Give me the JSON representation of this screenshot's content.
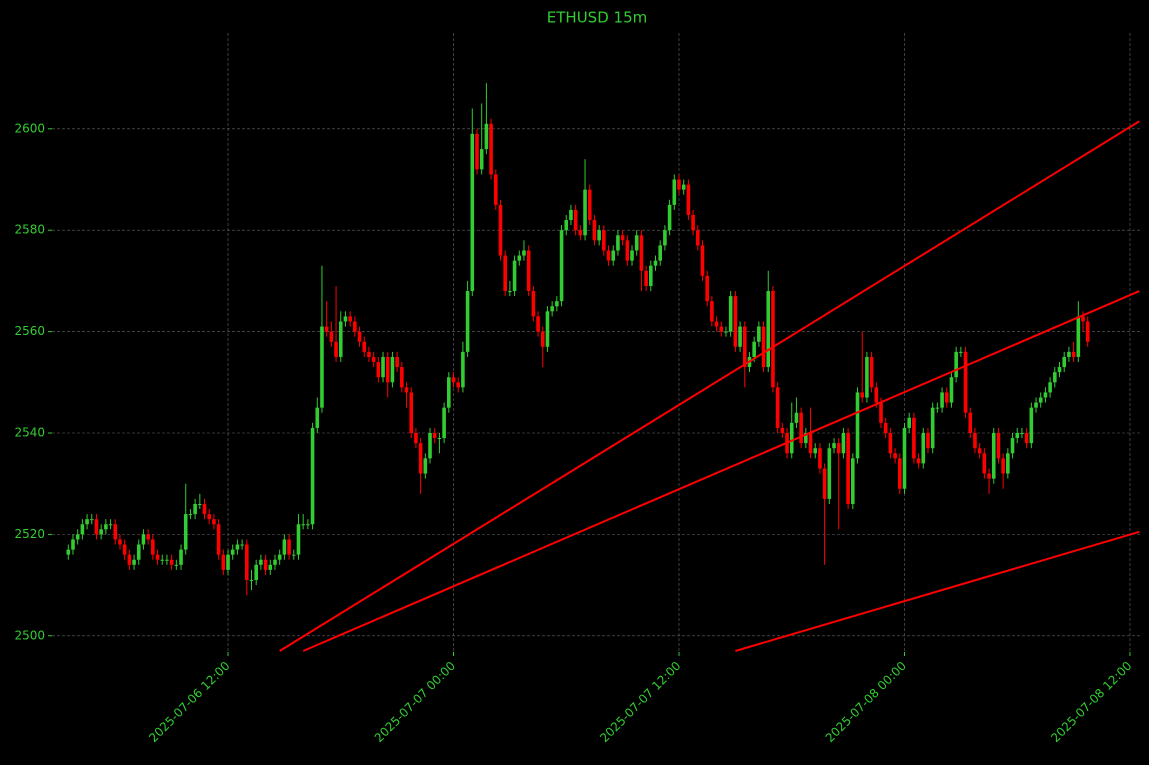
{
  "chart_data": {
    "type": "candlestick",
    "title": "ETHUSD 15m",
    "up_color": "#32cd32",
    "down_color": "#ff0000",
    "text_color": "#32cd32",
    "grid": true,
    "ylim": [
      2496.8,
      2618.9
    ],
    "yticks": [
      2500,
      2520,
      2540,
      2560,
      2580,
      2600
    ],
    "xlim": [
      "2025-07-06 02:38",
      "2025-07-08 12:32"
    ],
    "xticks": [
      "2025-07-06 12:00",
      "2025-07-07 00:00",
      "2025-07-07 12:00",
      "2025-07-08 00:00",
      "2025-07-08 12:00"
    ],
    "x": [
      "2025-07-06 03:30",
      "2025-07-06 03:45",
      "2025-07-06 04:00",
      "2025-07-06 04:15",
      "2025-07-06 04:30",
      "2025-07-06 04:45",
      "2025-07-06 05:00",
      "2025-07-06 05:15",
      "2025-07-06 05:30",
      "2025-07-06 05:45",
      "2025-07-06 06:00",
      "2025-07-06 06:15",
      "2025-07-06 06:30",
      "2025-07-06 06:45",
      "2025-07-06 07:00",
      "2025-07-06 07:15",
      "2025-07-06 07:30",
      "2025-07-06 07:45",
      "2025-07-06 08:00",
      "2025-07-06 08:15",
      "2025-07-06 08:30",
      "2025-07-06 08:45",
      "2025-07-06 09:00",
      "2025-07-06 09:15",
      "2025-07-06 09:30",
      "2025-07-06 09:45",
      "2025-07-06 10:00",
      "2025-07-06 10:15",
      "2025-07-06 10:30",
      "2025-07-06 10:45",
      "2025-07-06 11:00",
      "2025-07-06 11:15",
      "2025-07-06 11:30",
      "2025-07-06 11:45",
      "2025-07-06 12:00",
      "2025-07-06 12:15",
      "2025-07-06 12:30",
      "2025-07-06 12:45",
      "2025-07-06 13:00",
      "2025-07-06 13:15",
      "2025-07-06 13:30",
      "2025-07-06 13:45",
      "2025-07-06 14:00",
      "2025-07-06 14:15",
      "2025-07-06 14:30",
      "2025-07-06 14:45",
      "2025-07-06 15:00",
      "2025-07-06 15:15",
      "2025-07-06 15:30",
      "2025-07-06 15:45",
      "2025-07-06 16:00",
      "2025-07-06 16:15",
      "2025-07-06 16:30",
      "2025-07-06 16:45",
      "2025-07-06 17:00",
      "2025-07-06 17:15",
      "2025-07-06 17:30",
      "2025-07-06 17:45",
      "2025-07-06 18:00",
      "2025-07-06 18:15",
      "2025-07-06 18:30",
      "2025-07-06 18:45",
      "2025-07-06 19:00",
      "2025-07-06 19:15",
      "2025-07-06 19:30",
      "2025-07-06 19:45",
      "2025-07-06 20:00",
      "2025-07-06 20:15",
      "2025-07-06 20:30",
      "2025-07-06 20:45",
      "2025-07-06 21:00",
      "2025-07-06 21:15",
      "2025-07-06 21:30",
      "2025-07-06 21:45",
      "2025-07-06 22:00",
      "2025-07-06 22:15",
      "2025-07-06 22:30",
      "2025-07-06 22:45",
      "2025-07-06 23:00",
      "2025-07-06 23:15",
      "2025-07-06 23:30",
      "2025-07-06 23:45",
      "2025-07-07 00:00",
      "2025-07-07 00:15",
      "2025-07-07 00:30",
      "2025-07-07 00:45",
      "2025-07-07 01:00",
      "2025-07-07 01:15",
      "2025-07-07 01:30",
      "2025-07-07 01:45",
      "2025-07-07 02:00",
      "2025-07-07 02:15",
      "2025-07-07 02:30",
      "2025-07-07 02:45",
      "2025-07-07 03:00",
      "2025-07-07 03:15",
      "2025-07-07 03:30",
      "2025-07-07 03:45",
      "2025-07-07 04:00",
      "2025-07-07 04:15",
      "2025-07-07 04:30",
      "2025-07-07 04:45",
      "2025-07-07 05:00",
      "2025-07-07 05:15",
      "2025-07-07 05:30",
      "2025-07-07 05:45",
      "2025-07-07 06:00",
      "2025-07-07 06:15",
      "2025-07-07 06:30",
      "2025-07-07 06:45",
      "2025-07-07 07:00",
      "2025-07-07 07:15",
      "2025-07-07 07:30",
      "2025-07-07 07:45",
      "2025-07-07 08:00",
      "2025-07-07 08:15",
      "2025-07-07 08:30",
      "2025-07-07 08:45",
      "2025-07-07 09:00",
      "2025-07-07 09:15",
      "2025-07-07 09:30",
      "2025-07-07 09:45",
      "2025-07-07 10:00",
      "2025-07-07 10:15",
      "2025-07-07 10:30",
      "2025-07-07 10:45",
      "2025-07-07 11:00",
      "2025-07-07 11:15",
      "2025-07-07 11:30",
      "2025-07-07 11:45",
      "2025-07-07 12:00",
      "2025-07-07 12:15",
      "2025-07-07 12:30",
      "2025-07-07 12:45",
      "2025-07-07 13:00",
      "2025-07-07 13:15",
      "2025-07-07 13:30",
      "2025-07-07 13:45",
      "2025-07-07 14:00",
      "2025-07-07 14:15",
      "2025-07-07 14:30",
      "2025-07-07 14:45",
      "2025-07-07 15:00",
      "2025-07-07 15:15",
      "2025-07-07 15:30",
      "2025-07-07 15:45",
      "2025-07-07 16:00",
      "2025-07-07 16:15",
      "2025-07-07 16:30",
      "2025-07-07 16:45",
      "2025-07-07 17:00",
      "2025-07-07 17:15",
      "2025-07-07 17:30",
      "2025-07-07 17:45",
      "2025-07-07 18:00",
      "2025-07-07 18:15",
      "2025-07-07 18:30",
      "2025-07-07 18:45",
      "2025-07-07 19:00",
      "2025-07-07 19:15",
      "2025-07-07 19:30",
      "2025-07-07 19:45",
      "2025-07-07 20:00",
      "2025-07-07 20:15",
      "2025-07-07 20:30",
      "2025-07-07 20:45",
      "2025-07-07 21:00",
      "2025-07-07 21:15",
      "2025-07-07 21:30",
      "2025-07-07 21:45",
      "2025-07-07 22:00",
      "2025-07-07 22:15",
      "2025-07-07 22:30",
      "2025-07-07 22:45",
      "2025-07-07 23:00",
      "2025-07-07 23:15",
      "2025-07-07 23:30",
      "2025-07-07 23:45",
      "2025-07-08 00:00",
      "2025-07-08 00:15",
      "2025-07-08 00:30",
      "2025-07-08 00:45",
      "2025-07-08 01:00",
      "2025-07-08 01:15",
      "2025-07-08 01:30",
      "2025-07-08 01:45",
      "2025-07-08 02:00",
      "2025-07-08 02:15",
      "2025-07-08 02:30",
      "2025-07-08 02:45",
      "2025-07-08 03:00",
      "2025-07-08 03:15",
      "2025-07-08 03:30",
      "2025-07-08 03:45",
      "2025-07-08 04:00",
      "2025-07-08 04:15",
      "2025-07-08 04:30",
      "2025-07-08 04:45",
      "2025-07-08 05:00",
      "2025-07-08 05:15",
      "2025-07-08 05:30",
      "2025-07-08 05:45",
      "2025-07-08 06:00",
      "2025-07-08 06:15",
      "2025-07-08 06:30",
      "2025-07-08 06:45",
      "2025-07-08 07:00",
      "2025-07-08 07:15",
      "2025-07-08 07:30",
      "2025-07-08 07:45",
      "2025-07-08 08:00",
      "2025-07-08 08:15",
      "2025-07-08 08:30",
      "2025-07-08 08:45",
      "2025-07-08 09:00",
      "2025-07-08 09:15",
      "2025-07-08 09:30",
      "2025-07-08 09:45"
    ],
    "open": [
      2516,
      2517,
      2519,
      2520,
      2522,
      2523,
      2523,
      2520,
      2521,
      2522,
      2522,
      2519,
      2518,
      2516,
      2514,
      2515,
      2518,
      2520,
      2519,
      2516,
      2515,
      2515,
      2515,
      2514,
      2514,
      2517,
      2524,
      2524,
      2526,
      2526,
      2524,
      2523,
      2522,
      2516,
      2513,
      2516,
      2517,
      2518,
      2518,
      2511,
      2511,
      2514,
      2515,
      2513,
      2514,
      2515,
      2516,
      2519,
      2516,
      2516,
      2522,
      2522,
      2522,
      2541,
      2545,
      2561,
      2560,
      2558,
      2555,
      2562,
      2563,
      2562,
      2560,
      2558,
      2556,
      2555,
      2554,
      2551,
      2555,
      2550,
      2555,
      2553,
      2549,
      2548,
      2540,
      2538,
      2532,
      2535,
      2540,
      2539,
      2539,
      2545,
      2551,
      2550,
      2549,
      2556,
      2568,
      2599,
      2592,
      2596,
      2601,
      2591,
      2585,
      2575,
      2568,
      2568,
      2574,
      2575,
      2576,
      2568,
      2563,
      2560,
      2557,
      2564,
      2565,
      2566,
      2580,
      2582,
      2584,
      2580,
      2579,
      2588,
      2582,
      2578,
      2580,
      2576,
      2574,
      2576,
      2579,
      2578,
      2574,
      2576,
      2579,
      2572,
      2569,
      2573,
      2574,
      2577,
      2580,
      2585,
      2590,
      2588,
      2589,
      2583,
      2580,
      2577,
      2571,
      2566,
      2562,
      2561,
      2560,
      2560,
      2567,
      2557,
      2561,
      2553,
      2555,
      2558,
      2561,
      2553,
      2568,
      2549,
      2541,
      2540,
      2536,
      2542,
      2544,
      2538,
      2540,
      2536,
      2537,
      2533,
      2527,
      2537,
      2538,
      2536,
      2540,
      2526,
      2535,
      2548,
      2547,
      2555,
      2549,
      2546,
      2542,
      2540,
      2536,
      2535,
      2529,
      2541,
      2543,
      2535,
      2534,
      2540,
      2537,
      2545,
      2545,
      2548,
      2546,
      2551,
      2556,
      2556,
      2544,
      2540,
      2537,
      2536,
      2532,
      2531,
      2540,
      2535,
      2532,
      2536,
      2539,
      2540,
      2540,
      2538,
      2545,
      2546,
      2547,
      2548,
      2550,
      2552,
      2553,
      2555,
      2556,
      2555,
      2563,
      2562
    ],
    "high": [
      2518,
      2520,
      2521,
      2523,
      2524,
      2524,
      2524,
      2522,
      2523,
      2523,
      2523,
      2520,
      2519,
      2517,
      2516,
      2519,
      2521,
      2521,
      2520,
      2517,
      2516,
      2516,
      2516,
      2515,
      2518,
      2530,
      2525,
      2527,
      2528,
      2527,
      2525,
      2524,
      2523,
      2517,
      2517,
      2518,
      2519,
      2519,
      2519,
      2513,
      2515,
      2516,
      2516,
      2515,
      2516,
      2517,
      2520,
      2520,
      2517,
      2524,
      2524,
      2523,
      2542,
      2547,
      2573,
      2566,
      2562,
      2569,
      2564,
      2564,
      2564,
      2563,
      2561,
      2559,
      2557,
      2556,
      2555,
      2556,
      2556,
      2556,
      2556,
      2554,
      2550,
      2549,
      2541,
      2539,
      2536,
      2541,
      2541,
      2540,
      2546,
      2552,
      2552,
      2551,
      2558,
      2570,
      2604,
      2600,
      2605,
      2609,
      2602,
      2592,
      2586,
      2576,
      2570,
      2575,
      2576,
      2578,
      2577,
      2569,
      2564,
      2561,
      2565,
      2566,
      2567,
      2581,
      2583,
      2585,
      2585,
      2581,
      2594,
      2589,
      2583,
      2581,
      2581,
      2577,
      2577,
      2580,
      2580,
      2579,
      2577,
      2580,
      2580,
      2573,
      2574,
      2575,
      2578,
      2581,
      2586,
      2591,
      2591,
      2590,
      2590,
      2584,
      2581,
      2578,
      2572,
      2567,
      2563,
      2562,
      2561,
      2568,
      2568,
      2562,
      2562,
      2556,
      2559,
      2562,
      2562,
      2572,
      2569,
      2550,
      2542,
      2541,
      2546,
      2547,
      2545,
      2541,
      2545,
      2538,
      2538,
      2534,
      2538,
      2539,
      2539,
      2541,
      2541,
      2536,
      2549,
      2560,
      2556,
      2556,
      2550,
      2547,
      2543,
      2541,
      2537,
      2536,
      2542,
      2544,
      2544,
      2536,
      2541,
      2541,
      2546,
      2546,
      2549,
      2549,
      2552,
      2557,
      2557,
      2557,
      2545,
      2541,
      2538,
      2537,
      2533,
      2541,
      2541,
      2536,
      2537,
      2540,
      2541,
      2541,
      2541,
      2546,
      2547,
      2548,
      2549,
      2551,
      2553,
      2554,
      2556,
      2557,
      2558,
      2566,
      2564,
      2563
    ],
    "low": [
      2515,
      2516,
      2518,
      2519,
      2521,
      2522,
      2519,
      2519,
      2520,
      2521,
      2518,
      2517,
      2515,
      2513,
      2513,
      2514,
      2517,
      2518,
      2515,
      2514,
      2514,
      2514,
      2513,
      2513,
      2513,
      2516,
      2523,
      2523,
      2525,
      2523,
      2522,
      2521,
      2515,
      2512,
      2512,
      2515,
      2516,
      2517,
      2508,
      2509,
      2510,
      2513,
      2512,
      2512,
      2513,
      2514,
      2515,
      2515,
      2515,
      2515,
      2521,
      2521,
      2521,
      2540,
      2544,
      2559,
      2557,
      2554,
      2554,
      2561,
      2561,
      2559,
      2557,
      2555,
      2554,
      2553,
      2550,
      2550,
      2547,
      2549,
      2552,
      2548,
      2545,
      2539,
      2537,
      2528,
      2531,
      2534,
      2538,
      2536,
      2538,
      2544,
      2549,
      2548,
      2548,
      2555,
      2567,
      2591,
      2591,
      2595,
      2590,
      2584,
      2574,
      2567,
      2567,
      2567,
      2573,
      2574,
      2567,
      2562,
      2559,
      2553,
      2556,
      2563,
      2564,
      2565,
      2579,
      2581,
      2579,
      2578,
      2578,
      2581,
      2577,
      2577,
      2575,
      2573,
      2573,
      2575,
      2577,
      2573,
      2573,
      2575,
      2568,
      2568,
      2568,
      2572,
      2573,
      2576,
      2579,
      2584,
      2587,
      2587,
      2582,
      2579,
      2576,
      2570,
      2565,
      2561,
      2560,
      2559,
      2559,
      2559,
      2556,
      2556,
      2549,
      2552,
      2554,
      2557,
      2552,
      2552,
      2548,
      2540,
      2539,
      2535,
      2535,
      2541,
      2537,
      2537,
      2535,
      2535,
      2532,
      2514,
      2526,
      2536,
      2521,
      2535,
      2525,
      2525,
      2534,
      2546,
      2546,
      2548,
      2545,
      2541,
      2539,
      2535,
      2534,
      2528,
      2528,
      2540,
      2534,
      2533,
      2533,
      2536,
      2536,
      2544,
      2544,
      2545,
      2545,
      2550,
      2555,
      2543,
      2539,
      2536,
      2535,
      2531,
      2528,
      2530,
      2534,
      2529,
      2531,
      2535,
      2538,
      2539,
      2537,
      2537,
      2544,
      2545,
      2546,
      2547,
      2549,
      2551,
      2552,
      2554,
      2554,
      2554,
      2560,
      2557
    ],
    "close": [
      2517,
      2519,
      2520,
      2522,
      2523,
      2523,
      2520,
      2521,
      2522,
      2522,
      2519,
      2518,
      2516,
      2514,
      2515,
      2518,
      2520,
      2519,
      2516,
      2515,
      2515,
      2515,
      2514,
      2514,
      2517,
      2524,
      2524,
      2526,
      2526,
      2524,
      2523,
      2522,
      2516,
      2513,
      2516,
      2517,
      2518,
      2518,
      2511,
      2511,
      2514,
      2515,
      2513,
      2514,
      2515,
      2516,
      2519,
      2516,
      2516,
      2522,
      2522,
      2522,
      2541,
      2545,
      2561,
      2560,
      2558,
      2555,
      2562,
      2563,
      2562,
      2560,
      2558,
      2556,
      2555,
      2554,
      2551,
      2555,
      2550,
      2555,
      2553,
      2549,
      2548,
      2540,
      2538,
      2532,
      2535,
      2540,
      2539,
      2539,
      2545,
      2551,
      2550,
      2549,
      2556,
      2568,
      2599,
      2592,
      2596,
      2601,
      2591,
      2585,
      2575,
      2568,
      2568,
      2574,
      2575,
      2576,
      2568,
      2563,
      2560,
      2557,
      2564,
      2565,
      2566,
      2580,
      2582,
      2584,
      2580,
      2579,
      2588,
      2582,
      2578,
      2580,
      2576,
      2574,
      2576,
      2579,
      2578,
      2574,
      2576,
      2579,
      2572,
      2569,
      2573,
      2574,
      2577,
      2580,
      2585,
      2590,
      2588,
      2589,
      2583,
      2580,
      2577,
      2571,
      2566,
      2562,
      2561,
      2560,
      2560,
      2567,
      2557,
      2561,
      2553,
      2555,
      2558,
      2561,
      2553,
      2568,
      2549,
      2541,
      2540,
      2536,
      2542,
      2544,
      2538,
      2540,
      2536,
      2537,
      2533,
      2527,
      2537,
      2538,
      2536,
      2540,
      2526,
      2535,
      2548,
      2547,
      2555,
      2549,
      2546,
      2542,
      2540,
      2536,
      2535,
      2529,
      2541,
      2543,
      2535,
      2534,
      2540,
      2537,
      2545,
      2545,
      2548,
      2546,
      2551,
      2556,
      2556,
      2544,
      2540,
      2537,
      2536,
      2532,
      2531,
      2540,
      2535,
      2532,
      2536,
      2539,
      2540,
      2540,
      2538,
      2545,
      2546,
      2547,
      2548,
      2550,
      2552,
      2553,
      2555,
      2556,
      2555,
      2563,
      2562,
      2558
    ],
    "trend_lines": [
      {
        "color": "#ff0000",
        "x": [
          "2025-07-06 14:45",
          "2025-07-08 12:30"
        ],
        "y": [
          2497,
          2601.5
        ]
      },
      {
        "color": "#ff0000",
        "x": [
          "2025-07-06 16:00",
          "2025-07-08 12:30"
        ],
        "y": [
          2497,
          2568
        ]
      },
      {
        "color": "#ff0000",
        "x": [
          "2025-07-07 15:00",
          "2025-07-08 12:30"
        ],
        "y": [
          2497,
          2520.5
        ]
      }
    ]
  }
}
